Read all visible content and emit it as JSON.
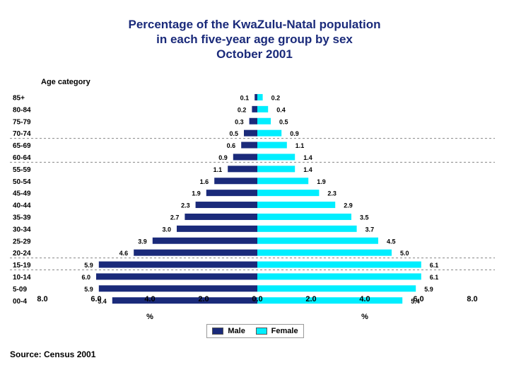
{
  "chart_data": {
    "type": "bar",
    "orientation": "horizontal-pyramid",
    "title": [
      "Percentage of the KwaZulu-Natal population",
      "in each five-year age group by sex",
      "October 2001"
    ],
    "ylabel": "Age category",
    "xlabel_left": "%",
    "xlabel_right": "%",
    "xlim": [
      -8,
      8
    ],
    "x_ticks": [
      "8.0",
      "6.0",
      "4.0",
      "2.0",
      "0.0",
      "2.0",
      "4.0",
      "6.0",
      "8.0"
    ],
    "categories": [
      "85+",
      "80-84",
      "75-79",
      "70-74",
      "65-69",
      "60-64",
      "55-59",
      "50-54",
      "45-49",
      "40-44",
      "35-39",
      "30-34",
      "25-29",
      "20-24",
      "15-19",
      "10-14",
      "5-09",
      "00-4"
    ],
    "series": [
      {
        "name": "Male",
        "color": "#1a2a7a",
        "values": [
          0.1,
          0.2,
          0.3,
          0.5,
          0.6,
          0.9,
          1.1,
          1.6,
          1.9,
          2.3,
          2.7,
          3.0,
          3.9,
          4.6,
          5.9,
          6.0,
          5.9,
          5.4
        ]
      },
      {
        "name": "Female",
        "color": "#00eeff",
        "values": [
          0.2,
          0.4,
          0.5,
          0.9,
          1.1,
          1.4,
          1.4,
          1.9,
          2.3,
          2.9,
          3.5,
          3.7,
          4.5,
          5.0,
          6.1,
          6.1,
          5.9,
          5.4
        ]
      }
    ],
    "gridlines": "dashed horizontal separators between groups",
    "legend_position": "bottom-center"
  },
  "source": "Source: Census 2001"
}
